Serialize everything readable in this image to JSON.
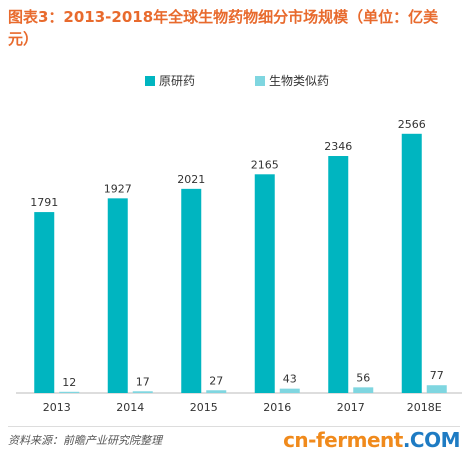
{
  "title": "图表3：2013-2018年全球生物药物细分市场规模（单位：亿美元）",
  "source": "资料来源：前瞻产业研究院整理",
  "site_logo": "cn-ferment.COM",
  "colors": {
    "title": "#E86A2D",
    "series1": "#00B5C0",
    "series2": "#7FD6E0",
    "logo_orange": "#F08A1C",
    "logo_blue": "#1E7BC3"
  },
  "chart_data": {
    "type": "bar",
    "categories": [
      "2013",
      "2014",
      "2015",
      "2016",
      "2017",
      "2018E"
    ],
    "series": [
      {
        "name": "原研药",
        "values": [
          1791,
          1927,
          2021,
          2165,
          2346,
          2566
        ]
      },
      {
        "name": "生物类似药",
        "values": [
          12,
          17,
          27,
          43,
          56,
          77
        ]
      }
    ],
    "ylim": [
      0,
      2950
    ],
    "legend_position": "top-center",
    "grid": false
  }
}
